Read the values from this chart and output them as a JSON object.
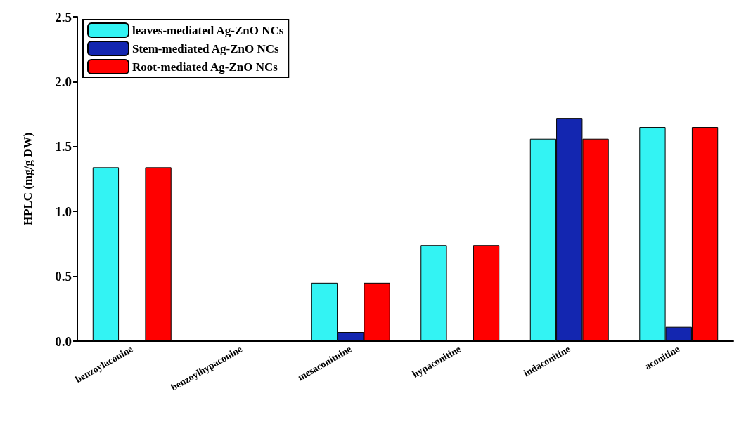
{
  "chart_data": {
    "type": "bar",
    "ylabel": "HPLC (mg/g DW)",
    "categories": [
      "benzoylaconine",
      "benzoylhypaconine",
      "mesaconitnine",
      "hypaconitine",
      "indaconitine",
      "aconitine"
    ],
    "series": [
      {
        "name": "leaves-mediated Ag-ZnO NCs",
        "color": "#33f3f3",
        "values": [
          1.34,
          0,
          0.45,
          0.74,
          1.56,
          1.65
        ]
      },
      {
        "name": "Stem-mediated Ag-ZnO NCs",
        "color": "#1326b0",
        "values": [
          0,
          0,
          0.07,
          0,
          1.72,
          0.11
        ]
      },
      {
        "name": "Root-mediated Ag-ZnO NCs",
        "color": "#ff0000",
        "values": [
          1.34,
          0,
          0.45,
          0.74,
          1.56,
          1.65
        ]
      }
    ],
    "ylim": [
      0,
      2.5
    ],
    "yticks": [
      {
        "value": 0,
        "label": "0.0"
      },
      {
        "value": 0.5,
        "label": "0.5"
      },
      {
        "value": 1,
        "label": "1.0"
      },
      {
        "value": 1.5,
        "label": "1.5"
      },
      {
        "value": 2,
        "label": "2.0"
      },
      {
        "value": 2.5,
        "label": "2.5"
      }
    ],
    "grid": false,
    "legend": "top left"
  }
}
